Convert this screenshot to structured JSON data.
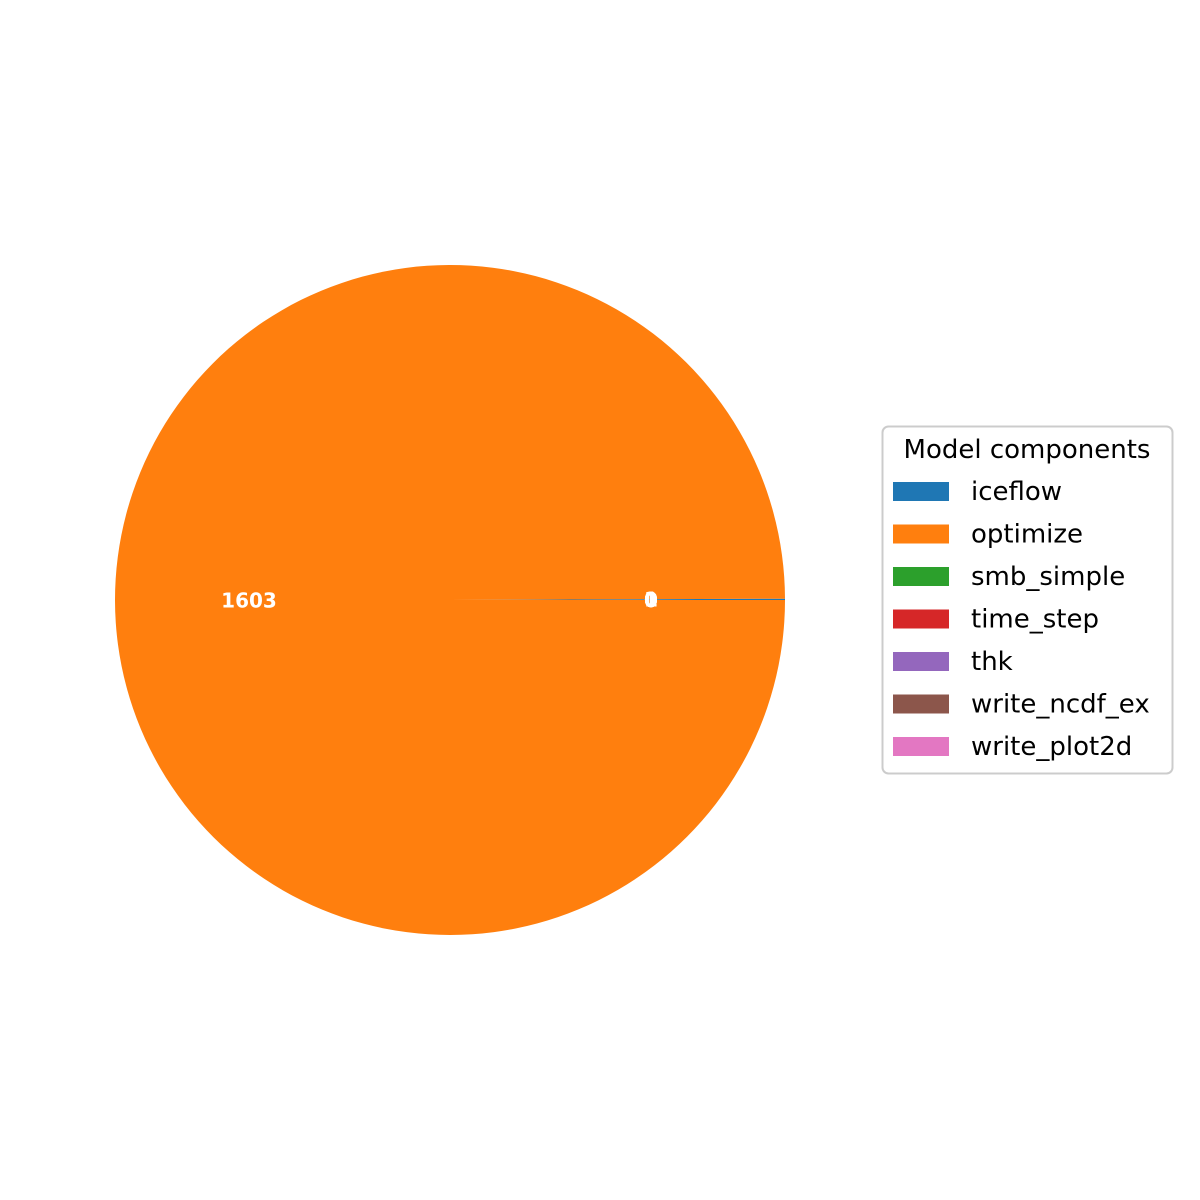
{
  "chart_data": {
    "type": "pie",
    "categories": [
      "iceflow",
      "optimize",
      "smb_simple",
      "time_step",
      "thk",
      "write_ncdf_ex",
      "write_plot2d"
    ],
    "values": [
      1,
      1603,
      0,
      0,
      0,
      0,
      0
    ],
    "value_labels": [
      "1",
      "1603",
      "0",
      "0",
      "0",
      "0",
      "0"
    ],
    "colors": [
      "#1f77b4",
      "#ff7f0e",
      "#2ca02c",
      "#d62728",
      "#9467bd",
      "#8c564b",
      "#e377c2"
    ],
    "legend": {
      "title": "Model components",
      "placement": "center-right"
    }
  }
}
